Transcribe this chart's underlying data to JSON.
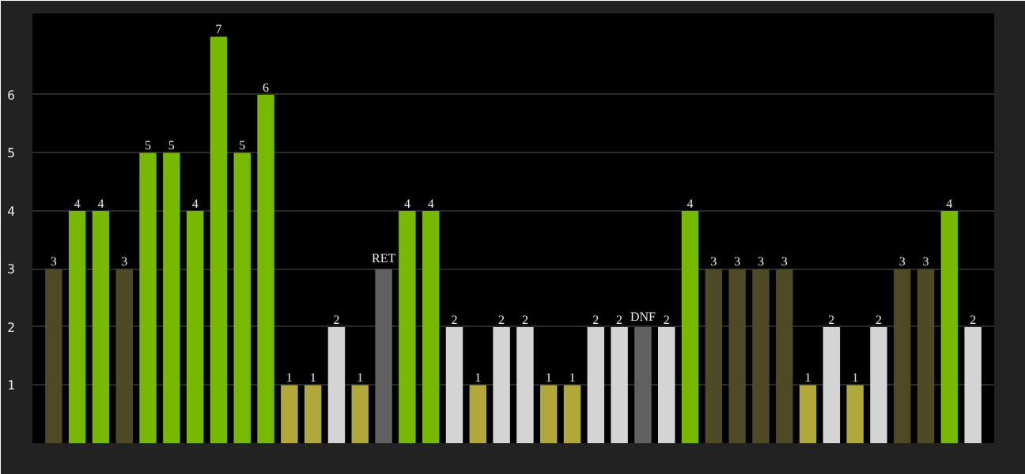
{
  "chart_data": {
    "type": "bar",
    "categories": [
      null,
      null,
      null,
      null,
      null,
      null,
      null,
      null,
      null,
      null,
      null,
      null,
      null,
      null,
      null,
      null,
      null,
      null,
      null,
      null,
      null,
      null,
      null,
      null,
      null,
      null,
      null,
      null,
      null,
      null,
      null,
      null,
      null,
      null,
      null,
      null,
      null,
      null,
      null,
      null
    ],
    "values": [
      3,
      4,
      4,
      3,
      5,
      5,
      4,
      7,
      5,
      6,
      1,
      1,
      2,
      1,
      3,
      4,
      4,
      2,
      1,
      2,
      2,
      1,
      1,
      2,
      2,
      2,
      2,
      4,
      3,
      3,
      3,
      3,
      1,
      2,
      1,
      2,
      3,
      3,
      4,
      2
    ],
    "colors": [
      "#4d4a25",
      "#77b800",
      "#77b800",
      "#4d4a25",
      "#77b800",
      "#77b800",
      "#77b800",
      "#77b800",
      "#77b800",
      "#77b800",
      "#b0a838",
      "#b0a838",
      "#d4d4d4",
      "#b0a838",
      "#606060",
      "#77b800",
      "#77b800",
      "#d4d4d4",
      "#b0a838",
      "#d4d4d4",
      "#d4d4d4",
      "#b0a838",
      "#b0a838",
      "#d4d4d4",
      "#d4d4d4",
      "#606060",
      "#d4d4d4",
      "#77b800",
      "#4d4a25",
      "#4d4a25",
      "#4d4a25",
      "#4d4a25",
      "#b0a838",
      "#d4d4d4",
      "#b0a838",
      "#d4d4d4",
      "#4d4a25",
      "#4d4a25",
      "#77b800",
      "#d4d4d4"
    ],
    "value_labels": [
      "3",
      "4",
      "4",
      "3",
      "5",
      "5",
      "4",
      "7",
      "5",
      "6",
      "1",
      "1",
      "2",
      "1",
      "RET",
      "4",
      "4",
      "2",
      "1",
      "2",
      "2",
      "1",
      "1",
      "2",
      "2",
      "DNF",
      "2",
      "4",
      "3",
      "3",
      "3",
      "3",
      "1",
      "2",
      "1",
      "2",
      "3",
      "3",
      "4",
      "2"
    ],
    "ylim": [
      0,
      7.4
    ],
    "yticks": [
      1,
      2,
      3,
      4,
      5,
      6
    ],
    "grid": "y"
  }
}
